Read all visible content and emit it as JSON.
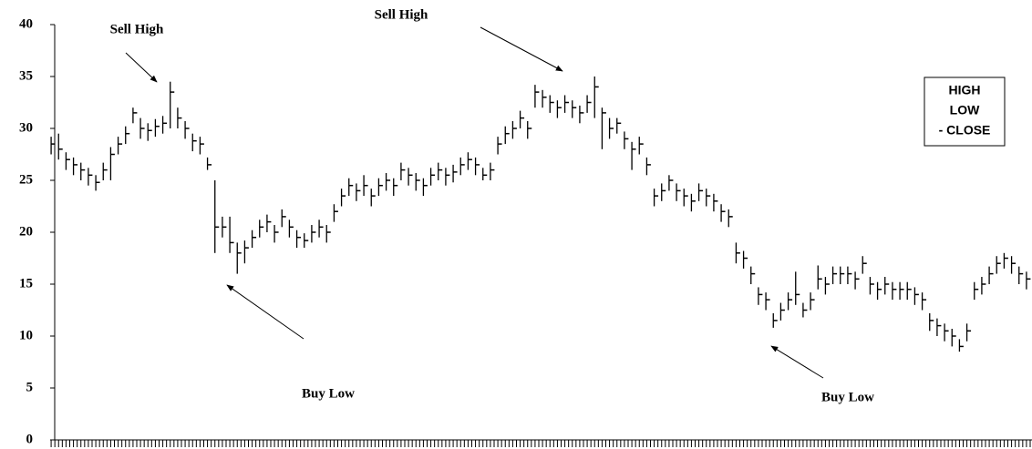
{
  "chart_data": {
    "type": "hlc",
    "categories": [
      null,
      null,
      null,
      null,
      null,
      null,
      null,
      null,
      null,
      null,
      null,
      null,
      null,
      null,
      null,
      null,
      null,
      null,
      null,
      null,
      null,
      null,
      null,
      null,
      null,
      null,
      null,
      null,
      null,
      null,
      null,
      null,
      null,
      null,
      null,
      null,
      null,
      null,
      null,
      null,
      null,
      null,
      null,
      null,
      null,
      null,
      null,
      null,
      null,
      null,
      null,
      null,
      null,
      null,
      null,
      null,
      null,
      null,
      null,
      null,
      null,
      null,
      null,
      null,
      null,
      null,
      null,
      null,
      null,
      null,
      null,
      null,
      null,
      null,
      null,
      null,
      null,
      null,
      null,
      null,
      null,
      null,
      null,
      null,
      null,
      null,
      null,
      null,
      null,
      null,
      null,
      null,
      null,
      null,
      null,
      null,
      null,
      null,
      null,
      null,
      null,
      null,
      null,
      null,
      null,
      null,
      null,
      null,
      null,
      null,
      null,
      null,
      null,
      null,
      null,
      null,
      null,
      null,
      null,
      null,
      null,
      null,
      null,
      null,
      null,
      null,
      null,
      null,
      null,
      null,
      null,
      null
    ],
    "series": [
      {
        "name": "HIGH",
        "color": "#000000",
        "values": [
          29.2,
          29.5,
          27.7,
          27.2,
          26.7,
          26.2,
          25.5,
          26.7,
          28.2,
          29.2,
          30.2,
          32,
          31,
          30.5,
          30.9,
          31.2,
          34.5,
          32,
          30.7,
          29.5,
          29.2,
          27.2,
          25,
          21.5,
          21.5,
          19,
          19.2,
          20.2,
          21.2,
          21.7,
          20.7,
          22.2,
          21.2,
          20.2,
          19.9,
          20.7,
          21.2,
          20.7,
          22.7,
          24.2,
          25.2,
          24.7,
          25.5,
          24.2,
          25.2,
          25.7,
          25.2,
          26.7,
          26.2,
          25.7,
          25.2,
          26.2,
          26.7,
          26.2,
          26.5,
          27.2,
          27.7,
          27.2,
          26.2,
          26.7,
          29.2,
          30.2,
          30.7,
          31.7,
          30.7,
          34.2,
          33.7,
          33.2,
          32.7,
          33.2,
          32.7,
          32.2,
          33.2,
          35,
          32,
          31,
          31,
          29.7,
          28.7,
          29.2,
          27.2,
          24.2,
          24.7,
          25.5,
          24.7,
          24.2,
          23.7,
          24.7,
          24.2,
          23.7,
          22.7,
          22.2,
          19,
          18.2,
          16.7,
          14.7,
          14.2,
          12.2,
          13.2,
          14.2,
          16.2,
          13.2,
          14.2,
          16.8,
          15.7,
          16.7,
          16.7,
          16.7,
          16.2,
          17.7,
          15.7,
          15.2,
          15.7,
          15.2,
          15.2,
          15.2,
          14.7,
          14.2,
          12.2,
          11.7,
          11.2,
          10.7,
          9.7,
          11.2,
          15.2,
          15.7,
          16.7,
          17.7,
          18,
          17.7,
          16.7,
          16.2
        ]
      },
      {
        "name": "LOW",
        "color": "#000000",
        "values": [
          27.5,
          27,
          26,
          25.5,
          25,
          24.5,
          24,
          25,
          25,
          27.5,
          28.5,
          30.5,
          29,
          28.8,
          29.2,
          29.5,
          30,
          30,
          29,
          27.8,
          27.5,
          26,
          18,
          19.5,
          18,
          16,
          17,
          18.5,
          19.5,
          20,
          19,
          20.5,
          19.5,
          18.5,
          18.5,
          19,
          19.5,
          19,
          21,
          22.5,
          23.5,
          23,
          23.5,
          22.5,
          23.5,
          24,
          23.5,
          25,
          24.5,
          24,
          23.5,
          24.5,
          25,
          24.5,
          24.8,
          25.5,
          26,
          25.5,
          25,
          25,
          27.5,
          28.5,
          29,
          30,
          29,
          32,
          32,
          31.5,
          31,
          31.5,
          31,
          30.5,
          31.5,
          31,
          28,
          29,
          29.5,
          28,
          26,
          27.5,
          25.5,
          22.5,
          23,
          24,
          23,
          22.5,
          22,
          23,
          22.5,
          22,
          21,
          20.5,
          17,
          16.5,
          15,
          13,
          12.5,
          10.8,
          11.5,
          12.5,
          13,
          11.8,
          12.5,
          14.5,
          14,
          15,
          15,
          15,
          14.5,
          16,
          14,
          13.5,
          14,
          13.5,
          13.5,
          13.5,
          13,
          12.5,
          10.5,
          10,
          9.5,
          9,
          8.5,
          9.5,
          13.5,
          14,
          15,
          16,
          16.5,
          16,
          15,
          14.5
        ]
      },
      {
        "name": "- CLOSE",
        "color": "#000000",
        "values": [
          28.5,
          28,
          27,
          26.5,
          26,
          25.5,
          24.8,
          26,
          27.5,
          28.5,
          29.5,
          31.5,
          30,
          29.8,
          30.2,
          30.5,
          33.5,
          31,
          30,
          28.8,
          28.5,
          26.5,
          20.5,
          20.5,
          19,
          18,
          18.5,
          19.5,
          20.5,
          21,
          20,
          21.5,
          20.5,
          19.5,
          19.2,
          20,
          20.5,
          20,
          22,
          23.5,
          24.5,
          24,
          24.5,
          23.5,
          24.5,
          25,
          24.5,
          26,
          25.5,
          25,
          24.5,
          25.5,
          26,
          25.5,
          25.8,
          26.5,
          27,
          26.5,
          25.5,
          26,
          28.5,
          29.5,
          30,
          31,
          30,
          33.5,
          33,
          32.5,
          32,
          32.5,
          32,
          31.5,
          32.5,
          34,
          31.5,
          30,
          30.5,
          29,
          28,
          28.5,
          26.5,
          23.5,
          24,
          25,
          24,
          23.5,
          23,
          24,
          23.5,
          23,
          22,
          21.5,
          18,
          17.5,
          16,
          14,
          13.5,
          11.5,
          12.5,
          13.5,
          14,
          12.5,
          13.5,
          15.5,
          15,
          16,
          16,
          16,
          15.5,
          17,
          15,
          14.5,
          15,
          14.5,
          14.5,
          14.5,
          14,
          13.5,
          11.5,
          11,
          10.5,
          10,
          9,
          10.5,
          14.5,
          15,
          16,
          17,
          17.5,
          17,
          16,
          15.5
        ]
      }
    ],
    "ylim": [
      0,
      40
    ],
    "yticks": [
      0,
      5,
      10,
      15,
      20,
      25,
      30,
      35,
      40
    ],
    "annotations": [
      "Sell High",
      "Sell High",
      "Buy Low",
      "Buy Low"
    ],
    "legend": "right"
  }
}
